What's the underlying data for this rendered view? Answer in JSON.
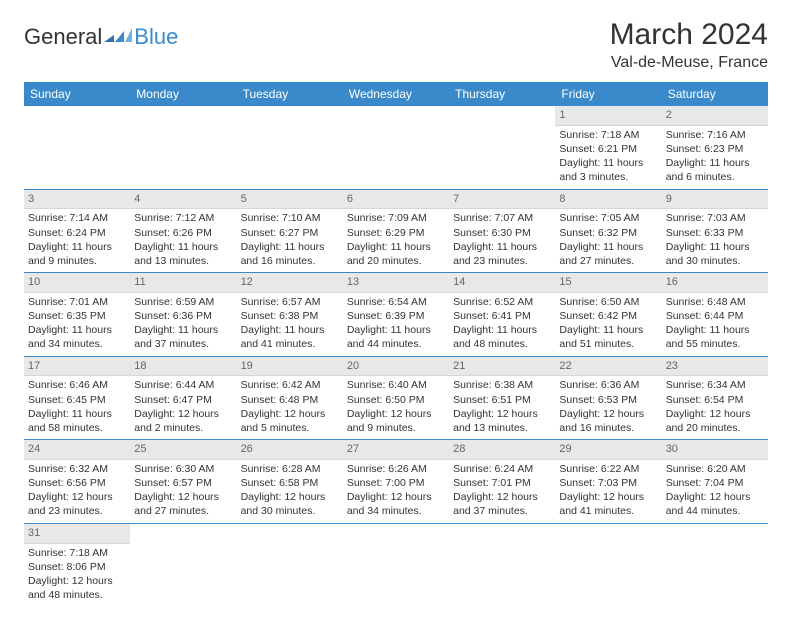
{
  "logo": {
    "text_a": "General",
    "text_b": "Blue",
    "flag_colors": [
      "#2f6fb3",
      "#3a8acb",
      "#6fb3e6"
    ]
  },
  "title": "March 2024",
  "location": "Val-de-Meuse, France",
  "colors": {
    "header_bg": "#3a8acb",
    "header_fg": "#ffffff",
    "daynum_bg": "#e8e8e8",
    "daynum_fg": "#666666",
    "row_border": "#3a8acb",
    "text": "#333333",
    "page_bg": "#ffffff"
  },
  "weekdays": [
    "Sunday",
    "Monday",
    "Tuesday",
    "Wednesday",
    "Thursday",
    "Friday",
    "Saturday"
  ],
  "weeks": [
    [
      null,
      null,
      null,
      null,
      null,
      {
        "n": "1",
        "sunrise": "Sunrise: 7:18 AM",
        "sunset": "Sunset: 6:21 PM",
        "daylight": "Daylight: 11 hours and 3 minutes."
      },
      {
        "n": "2",
        "sunrise": "Sunrise: 7:16 AM",
        "sunset": "Sunset: 6:23 PM",
        "daylight": "Daylight: 11 hours and 6 minutes."
      }
    ],
    [
      {
        "n": "3",
        "sunrise": "Sunrise: 7:14 AM",
        "sunset": "Sunset: 6:24 PM",
        "daylight": "Daylight: 11 hours and 9 minutes."
      },
      {
        "n": "4",
        "sunrise": "Sunrise: 7:12 AM",
        "sunset": "Sunset: 6:26 PM",
        "daylight": "Daylight: 11 hours and 13 minutes."
      },
      {
        "n": "5",
        "sunrise": "Sunrise: 7:10 AM",
        "sunset": "Sunset: 6:27 PM",
        "daylight": "Daylight: 11 hours and 16 minutes."
      },
      {
        "n": "6",
        "sunrise": "Sunrise: 7:09 AM",
        "sunset": "Sunset: 6:29 PM",
        "daylight": "Daylight: 11 hours and 20 minutes."
      },
      {
        "n": "7",
        "sunrise": "Sunrise: 7:07 AM",
        "sunset": "Sunset: 6:30 PM",
        "daylight": "Daylight: 11 hours and 23 minutes."
      },
      {
        "n": "8",
        "sunrise": "Sunrise: 7:05 AM",
        "sunset": "Sunset: 6:32 PM",
        "daylight": "Daylight: 11 hours and 27 minutes."
      },
      {
        "n": "9",
        "sunrise": "Sunrise: 7:03 AM",
        "sunset": "Sunset: 6:33 PM",
        "daylight": "Daylight: 11 hours and 30 minutes."
      }
    ],
    [
      {
        "n": "10",
        "sunrise": "Sunrise: 7:01 AM",
        "sunset": "Sunset: 6:35 PM",
        "daylight": "Daylight: 11 hours and 34 minutes."
      },
      {
        "n": "11",
        "sunrise": "Sunrise: 6:59 AM",
        "sunset": "Sunset: 6:36 PM",
        "daylight": "Daylight: 11 hours and 37 minutes."
      },
      {
        "n": "12",
        "sunrise": "Sunrise: 6:57 AM",
        "sunset": "Sunset: 6:38 PM",
        "daylight": "Daylight: 11 hours and 41 minutes."
      },
      {
        "n": "13",
        "sunrise": "Sunrise: 6:54 AM",
        "sunset": "Sunset: 6:39 PM",
        "daylight": "Daylight: 11 hours and 44 minutes."
      },
      {
        "n": "14",
        "sunrise": "Sunrise: 6:52 AM",
        "sunset": "Sunset: 6:41 PM",
        "daylight": "Daylight: 11 hours and 48 minutes."
      },
      {
        "n": "15",
        "sunrise": "Sunrise: 6:50 AM",
        "sunset": "Sunset: 6:42 PM",
        "daylight": "Daylight: 11 hours and 51 minutes."
      },
      {
        "n": "16",
        "sunrise": "Sunrise: 6:48 AM",
        "sunset": "Sunset: 6:44 PM",
        "daylight": "Daylight: 11 hours and 55 minutes."
      }
    ],
    [
      {
        "n": "17",
        "sunrise": "Sunrise: 6:46 AM",
        "sunset": "Sunset: 6:45 PM",
        "daylight": "Daylight: 11 hours and 58 minutes."
      },
      {
        "n": "18",
        "sunrise": "Sunrise: 6:44 AM",
        "sunset": "Sunset: 6:47 PM",
        "daylight": "Daylight: 12 hours and 2 minutes."
      },
      {
        "n": "19",
        "sunrise": "Sunrise: 6:42 AM",
        "sunset": "Sunset: 6:48 PM",
        "daylight": "Daylight: 12 hours and 5 minutes."
      },
      {
        "n": "20",
        "sunrise": "Sunrise: 6:40 AM",
        "sunset": "Sunset: 6:50 PM",
        "daylight": "Daylight: 12 hours and 9 minutes."
      },
      {
        "n": "21",
        "sunrise": "Sunrise: 6:38 AM",
        "sunset": "Sunset: 6:51 PM",
        "daylight": "Daylight: 12 hours and 13 minutes."
      },
      {
        "n": "22",
        "sunrise": "Sunrise: 6:36 AM",
        "sunset": "Sunset: 6:53 PM",
        "daylight": "Daylight: 12 hours and 16 minutes."
      },
      {
        "n": "23",
        "sunrise": "Sunrise: 6:34 AM",
        "sunset": "Sunset: 6:54 PM",
        "daylight": "Daylight: 12 hours and 20 minutes."
      }
    ],
    [
      {
        "n": "24",
        "sunrise": "Sunrise: 6:32 AM",
        "sunset": "Sunset: 6:56 PM",
        "daylight": "Daylight: 12 hours and 23 minutes."
      },
      {
        "n": "25",
        "sunrise": "Sunrise: 6:30 AM",
        "sunset": "Sunset: 6:57 PM",
        "daylight": "Daylight: 12 hours and 27 minutes."
      },
      {
        "n": "26",
        "sunrise": "Sunrise: 6:28 AM",
        "sunset": "Sunset: 6:58 PM",
        "daylight": "Daylight: 12 hours and 30 minutes."
      },
      {
        "n": "27",
        "sunrise": "Sunrise: 6:26 AM",
        "sunset": "Sunset: 7:00 PM",
        "daylight": "Daylight: 12 hours and 34 minutes."
      },
      {
        "n": "28",
        "sunrise": "Sunrise: 6:24 AM",
        "sunset": "Sunset: 7:01 PM",
        "daylight": "Daylight: 12 hours and 37 minutes."
      },
      {
        "n": "29",
        "sunrise": "Sunrise: 6:22 AM",
        "sunset": "Sunset: 7:03 PM",
        "daylight": "Daylight: 12 hours and 41 minutes."
      },
      {
        "n": "30",
        "sunrise": "Sunrise: 6:20 AM",
        "sunset": "Sunset: 7:04 PM",
        "daylight": "Daylight: 12 hours and 44 minutes."
      }
    ],
    [
      {
        "n": "31",
        "sunrise": "Sunrise: 7:18 AM",
        "sunset": "Sunset: 8:06 PM",
        "daylight": "Daylight: 12 hours and 48 minutes."
      },
      null,
      null,
      null,
      null,
      null,
      null
    ]
  ]
}
